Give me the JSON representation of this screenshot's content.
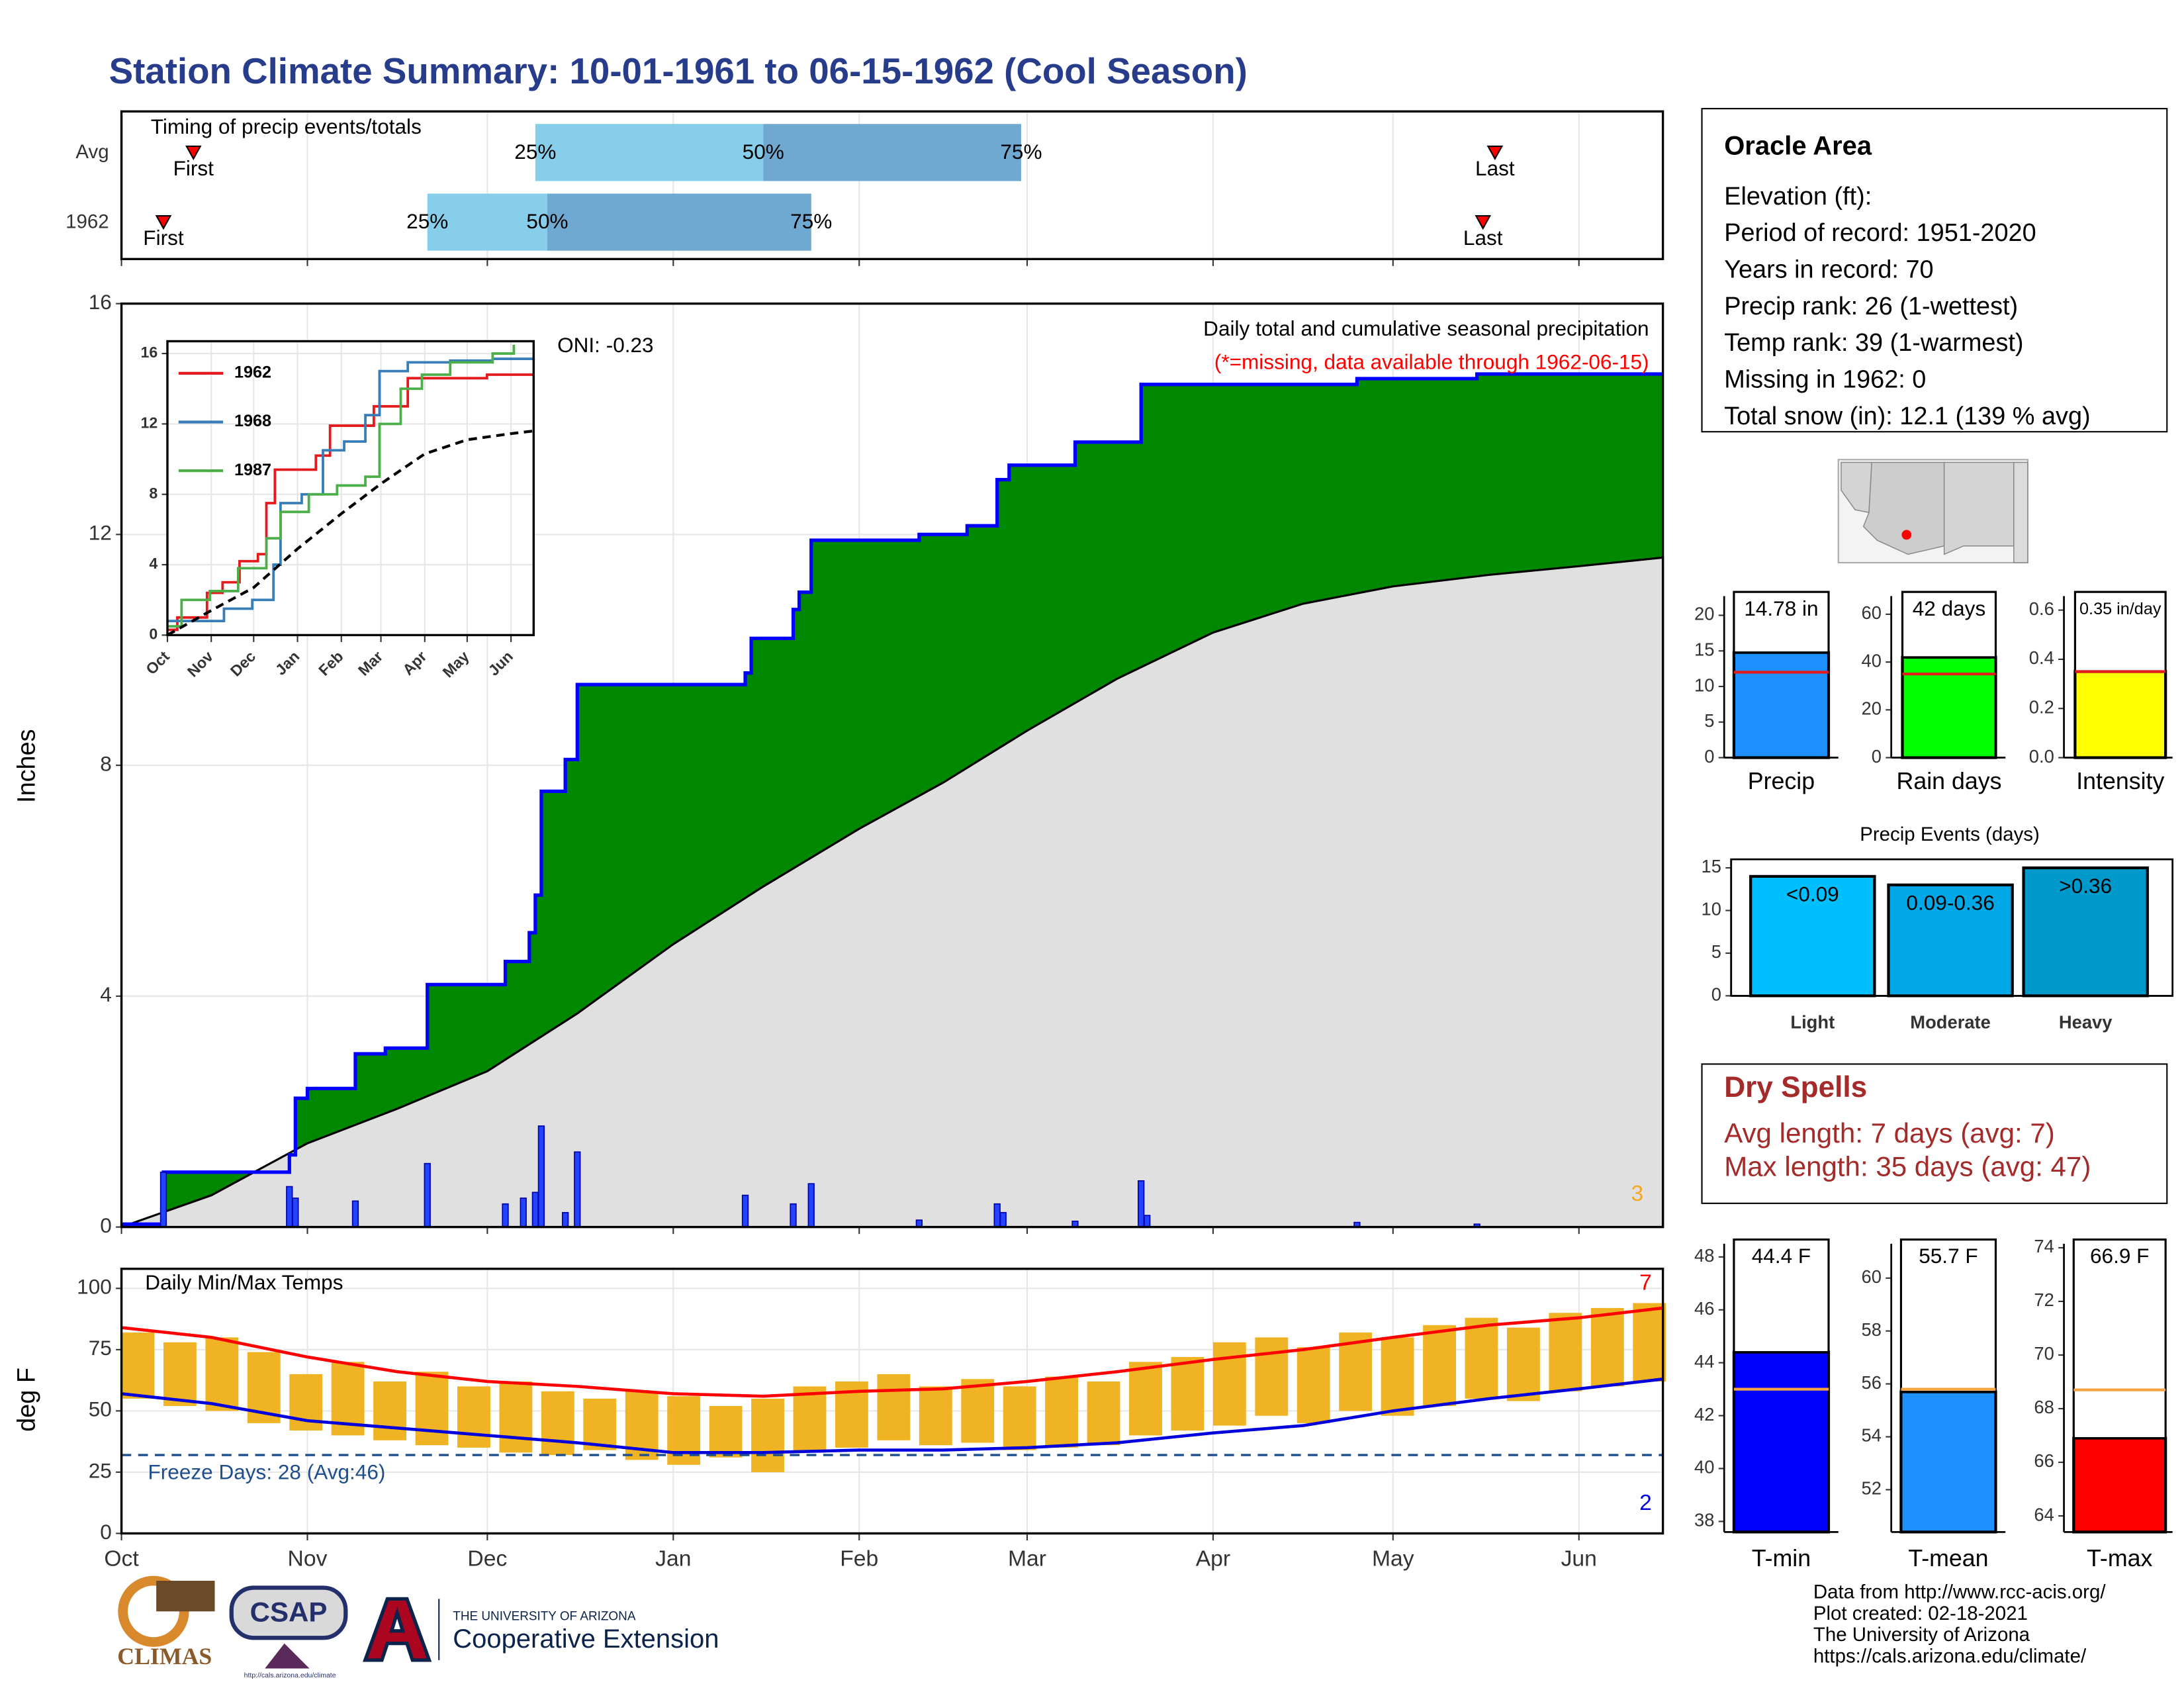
{
  "title": "Station Climate Summary: 10-01-1961 to 06-15-1962 (Cool Season)",
  "chart_data": [
    {
      "type": "timing",
      "title": "Timing of precip events/totals",
      "xlim": [
        0,
        257
      ],
      "xticks": [
        0,
        31,
        61,
        92,
        123,
        151,
        182,
        212,
        243
      ],
      "grid": true,
      "rows": [
        {
          "name": "Avg",
          "first": 12,
          "p25": 69,
          "p50": 107,
          "p75": 150,
          "last": 229
        },
        {
          "name": "1962",
          "first": 7,
          "p25": 51,
          "p50": 71,
          "p75": 115,
          "last": 227
        }
      ],
      "labels": {
        "first": "First",
        "p25": "25%",
        "p50": "50%",
        "p75": "75%",
        "last": "Last"
      },
      "colors": [
        "#87ceeb",
        "#6fa8d0"
      ],
      "marker_color": "#ff0000"
    },
    {
      "type": "cumulative",
      "title": "Daily total and cumulative seasonal precipitation",
      "subtitle": "(*=missing, data available through 1962-06-15)",
      "annotation": "ONI: -0.23",
      "count": 3,
      "y_label": "Inches",
      "xlim": [
        0,
        257
      ],
      "ylim": [
        0,
        16
      ],
      "xticks": [
        0,
        31,
        61,
        92,
        123,
        151,
        182,
        212,
        243
      ],
      "yticks": [
        0,
        4,
        8,
        12,
        16
      ],
      "grid": true,
      "cumulative": {
        "color": "#0000ff",
        "fill": "#008800",
        "x": [
          0,
          7,
          28,
          29,
          31,
          39,
          44,
          51,
          64,
          68,
          69,
          70,
          74,
          76,
          104,
          105,
          112,
          113,
          115,
          133,
          141,
          146,
          148,
          159,
          170,
          206,
          226
        ],
        "values": [
          0.05,
          0.95,
          1.25,
          2.23,
          2.4,
          3.0,
          3.1,
          4.2,
          4.6,
          5.1,
          5.75,
          7.55,
          8.1,
          9.4,
          9.6,
          10.2,
          10.7,
          11.0,
          11.9,
          12.0,
          12.15,
          12.95,
          13.2,
          13.6,
          14.6,
          14.7,
          14.78
        ]
      },
      "average": {
        "fill": "#e0e0e0",
        "x": [
          0,
          15,
          31,
          46,
          61,
          76,
          92,
          107,
          123,
          137,
          151,
          166,
          182,
          197,
          212,
          228,
          243,
          257
        ],
        "values": [
          0,
          0.55,
          1.45,
          2.05,
          2.7,
          3.7,
          4.9,
          5.9,
          6.9,
          7.7,
          8.6,
          9.5,
          10.3,
          10.8,
          11.1,
          11.3,
          11.45,
          11.6
        ]
      },
      "daily": {
        "color": "#2244ff",
        "x": [
          7,
          28,
          29,
          39,
          51,
          64,
          67,
          69,
          70,
          74,
          76,
          104,
          112,
          115,
          133,
          146,
          147,
          159,
          170,
          171,
          206,
          226
        ],
        "values": [
          0.95,
          0.7,
          0.5,
          0.45,
          1.1,
          0.4,
          0.5,
          0.6,
          1.75,
          0.25,
          1.3,
          0.55,
          0.4,
          0.75,
          0.12,
          0.4,
          0.25,
          0.1,
          0.8,
          0.2,
          0.08,
          0.05
        ]
      }
    },
    {
      "type": "inset",
      "xlim": [
        0,
        259
      ],
      "ylim": [
        0,
        16.7
      ],
      "xticks": [
        {
          "value": 0,
          "label": "Oct"
        },
        {
          "value": 31,
          "label": "Nov"
        },
        {
          "value": 61,
          "label": "Dec"
        },
        {
          "value": 92,
          "label": "Jan"
        },
        {
          "value": 123,
          "label": "Feb"
        },
        {
          "value": 151,
          "label": "Mar"
        },
        {
          "value": 182,
          "label": "Apr"
        },
        {
          "value": 212,
          "label": "May"
        },
        {
          "value": 243,
          "label": "Jun"
        }
      ],
      "yticks": [
        0,
        4,
        8,
        12,
        16
      ],
      "grid": true,
      "series": [
        {
          "name": "1962",
          "color": "#e41a1c",
          "x": [
            0,
            7,
            28,
            39,
            51,
            64,
            70,
            76,
            105,
            115,
            146,
            170,
            226,
            259
          ],
          "values": [
            0.3,
            1.0,
            2.4,
            3.0,
            4.2,
            4.6,
            7.5,
            9.4,
            10.2,
            11.9,
            13.0,
            14.6,
            14.8,
            14.8
          ]
        },
        {
          "name": "1968",
          "color": "#377eb8",
          "x": [
            0,
            20,
            40,
            60,
            75,
            80,
            95,
            110,
            125,
            140,
            150,
            170,
            200,
            230,
            259
          ],
          "values": [
            0.8,
            0.8,
            1.5,
            2.0,
            4.0,
            7.5,
            8.0,
            10.5,
            11.0,
            12.5,
            15.0,
            15.5,
            15.6,
            15.7,
            15.8
          ]
        },
        {
          "name": "1987",
          "color": "#4daf4a",
          "x": [
            0,
            10,
            30,
            50,
            70,
            80,
            100,
            120,
            140,
            150,
            165,
            180,
            200,
            230,
            245
          ],
          "values": [
            0.5,
            2.0,
            2.5,
            3.8,
            5.5,
            7.0,
            8.0,
            8.5,
            9.0,
            12.0,
            14.0,
            14.8,
            15.5,
            16.0,
            16.5
          ]
        },
        {
          "color": "#000000",
          "dash": true,
          "x": [
            0,
            31,
            61,
            92,
            123,
            151,
            182,
            212,
            243,
            259
          ],
          "values": [
            0,
            1.4,
            2.7,
            4.9,
            6.9,
            8.6,
            10.3,
            11.1,
            11.45,
            11.6
          ]
        }
      ]
    },
    {
      "type": "temps",
      "title": "Daily Min/Max Temps",
      "annotation": "Freeze Days: 28 (Avg:46)",
      "max_count": 7,
      "min_count": 2,
      "y_label": "deg F",
      "xlim": [
        0,
        257
      ],
      "ylim": [
        0,
        108
      ],
      "xticks": [
        {
          "value": 0,
          "label": "Oct"
        },
        {
          "value": 31,
          "label": "Nov"
        },
        {
          "value": 61,
          "label": "Dec"
        },
        {
          "value": 92,
          "label": "Jan"
        },
        {
          "value": 123,
          "label": "Feb"
        },
        {
          "value": 151,
          "label": "Mar"
        },
        {
          "value": 182,
          "label": "Apr"
        },
        {
          "value": 212,
          "label": "May"
        },
        {
          "value": 243,
          "label": "Jun"
        }
      ],
      "yticks": [
        0,
        25,
        50,
        75,
        100
      ],
      "grid": true,
      "freeze": 32,
      "freeze_color": "#1f4e8c",
      "bar_color": "#f0b323",
      "x": [
        0,
        7,
        14,
        21,
        28,
        35,
        42,
        49,
        56,
        63,
        70,
        77,
        84,
        91,
        98,
        105,
        112,
        119,
        126,
        133,
        140,
        147,
        154,
        161,
        168,
        175,
        182,
        189,
        196,
        203,
        210,
        217,
        224,
        231,
        238,
        245,
        252
      ],
      "min": [
        55,
        52,
        50,
        45,
        42,
        40,
        38,
        36,
        35,
        33,
        32,
        34,
        30,
        28,
        31,
        25,
        33,
        35,
        38,
        36,
        37,
        34,
        35,
        36,
        40,
        42,
        44,
        48,
        45,
        50,
        48,
        52,
        55,
        54,
        58,
        60,
        62
      ],
      "max": [
        82,
        78,
        80,
        74,
        65,
        70,
        62,
        66,
        60,
        62,
        58,
        55,
        58,
        56,
        52,
        55,
        60,
        62,
        65,
        60,
        63,
        60,
        64,
        62,
        70,
        72,
        78,
        80,
        76,
        82,
        80,
        85,
        88,
        84,
        90,
        92,
        94
      ],
      "series": [
        {
          "color": "#ff0000",
          "x": [
            0,
            15,
            31,
            46,
            61,
            76,
            92,
            107,
            123,
            137,
            151,
            166,
            182,
            197,
            212,
            228,
            243,
            257
          ],
          "values": [
            84,
            80,
            72,
            66,
            62,
            60,
            57,
            56,
            58,
            59,
            62,
            66,
            71,
            75,
            80,
            85,
            88,
            92
          ]
        },
        {
          "color": "#0000dd",
          "x": [
            0,
            15,
            31,
            46,
            61,
            76,
            92,
            107,
            123,
            137,
            151,
            166,
            182,
            197,
            212,
            228,
            243,
            257
          ],
          "values": [
            57,
            53,
            46,
            43,
            40,
            37,
            33,
            33,
            34,
            34,
            35,
            37,
            41,
            44,
            50,
            55,
            59,
            63
          ]
        }
      ]
    },
    {
      "type": "bar",
      "categories": [
        "Precip"
      ],
      "values": [
        14.78
      ],
      "value_labels": [
        "14.78 in"
      ],
      "average": 12,
      "color": "#1e90ff",
      "average_color": "#e31a1c",
      "ylim": [
        0,
        22.7
      ],
      "yticks": [
        0,
        5,
        10,
        15,
        20
      ]
    },
    {
      "type": "bar",
      "categories": [
        "Rain days"
      ],
      "values": [
        42
      ],
      "value_labels": [
        "42 days"
      ],
      "average": 35,
      "color": "#00ff00",
      "average_color": "#e31a1c",
      "ylim": [
        0,
        67.6
      ],
      "yticks": [
        0,
        20,
        40,
        60
      ]
    },
    {
      "type": "bar",
      "categories": [
        "Intensity"
      ],
      "values": [
        0.35
      ],
      "value_labels": [
        "0.35 in/day"
      ],
      "average": 0.35,
      "color": "#ffff00",
      "average_color": "#e31a1c",
      "ylim": [
        0,
        0.657
      ],
      "yticks": [
        {
          "value": 0,
          "label": "0.0"
        },
        0.2,
        0.4,
        0.6
      ]
    },
    {
      "type": "bar",
      "title": "Precip Events (days)",
      "categories": [
        "Light",
        "Moderate",
        "Heavy"
      ],
      "values": [
        14,
        13,
        15
      ],
      "bin_labels": [
        "<0.09",
        "0.09-0.36",
        ">0.36"
      ],
      "colors": [
        "#00bfff",
        "#00a8e8",
        "#0099cc"
      ],
      "ylim": [
        0,
        16
      ],
      "yticks": [
        0,
        5,
        10,
        15
      ]
    },
    {
      "type": "bar",
      "categories": [
        "T-min"
      ],
      "values": [
        44.4
      ],
      "value_labels": [
        "44.4 F"
      ],
      "average": 43,
      "color": "#0000ff",
      "average_color": "#f4a442",
      "ylim": [
        37.6,
        48.5
      ],
      "yticks": [
        38,
        40,
        42,
        44,
        46,
        48
      ]
    },
    {
      "type": "bar",
      "categories": [
        "T-mean"
      ],
      "values": [
        55.7
      ],
      "value_labels": [
        "55.7 F"
      ],
      "average": 55.8,
      "color": "#1e90ff",
      "average_color": "#f4a442",
      "ylim": [
        50.4,
        61.3
      ],
      "yticks": [
        52,
        54,
        56,
        58,
        60
      ]
    },
    {
      "type": "bar",
      "categories": [
        "T-max"
      ],
      "values": [
        66.9
      ],
      "value_labels": [
        "66.9 F"
      ],
      "average": 68.7,
      "color": "#ff0000",
      "average_color": "#f4a442",
      "ylim": [
        63.4,
        74.15
      ],
      "yticks": [
        64,
        66,
        68,
        70,
        72,
        74
      ]
    }
  ],
  "station": {
    "name": "Oracle Area",
    "lines": [
      "Elevation (ft):",
      "Period of record: 1951-2020",
      "Years in record: 70",
      "Precip rank: 26 (1-wettest)",
      "Temp rank: 39 (1-warmest)",
      "Missing in 1962: 0",
      "Total snow (in): 12.1 (139 % avg)"
    ]
  },
  "dry_spells": {
    "title": "Dry Spells",
    "lines": [
      "Avg length: 7 days (avg: 7)",
      "Max length: 35 days (avg: 47)"
    ]
  },
  "footer": [
    "Data from http://www.rcc-acis.org/",
    "Plot created: 02-18-2021",
    "The University of Arizona",
    "https://cals.arizona.edu/climate/"
  ],
  "logos": {
    "climas": "CLIMAS",
    "csap": "CSAP",
    "csap_url": "http://cals.arizona.edu/climate",
    "ua": "THE UNIVERSITY OF ARIZONA",
    "extension": "Cooperative Extension"
  }
}
